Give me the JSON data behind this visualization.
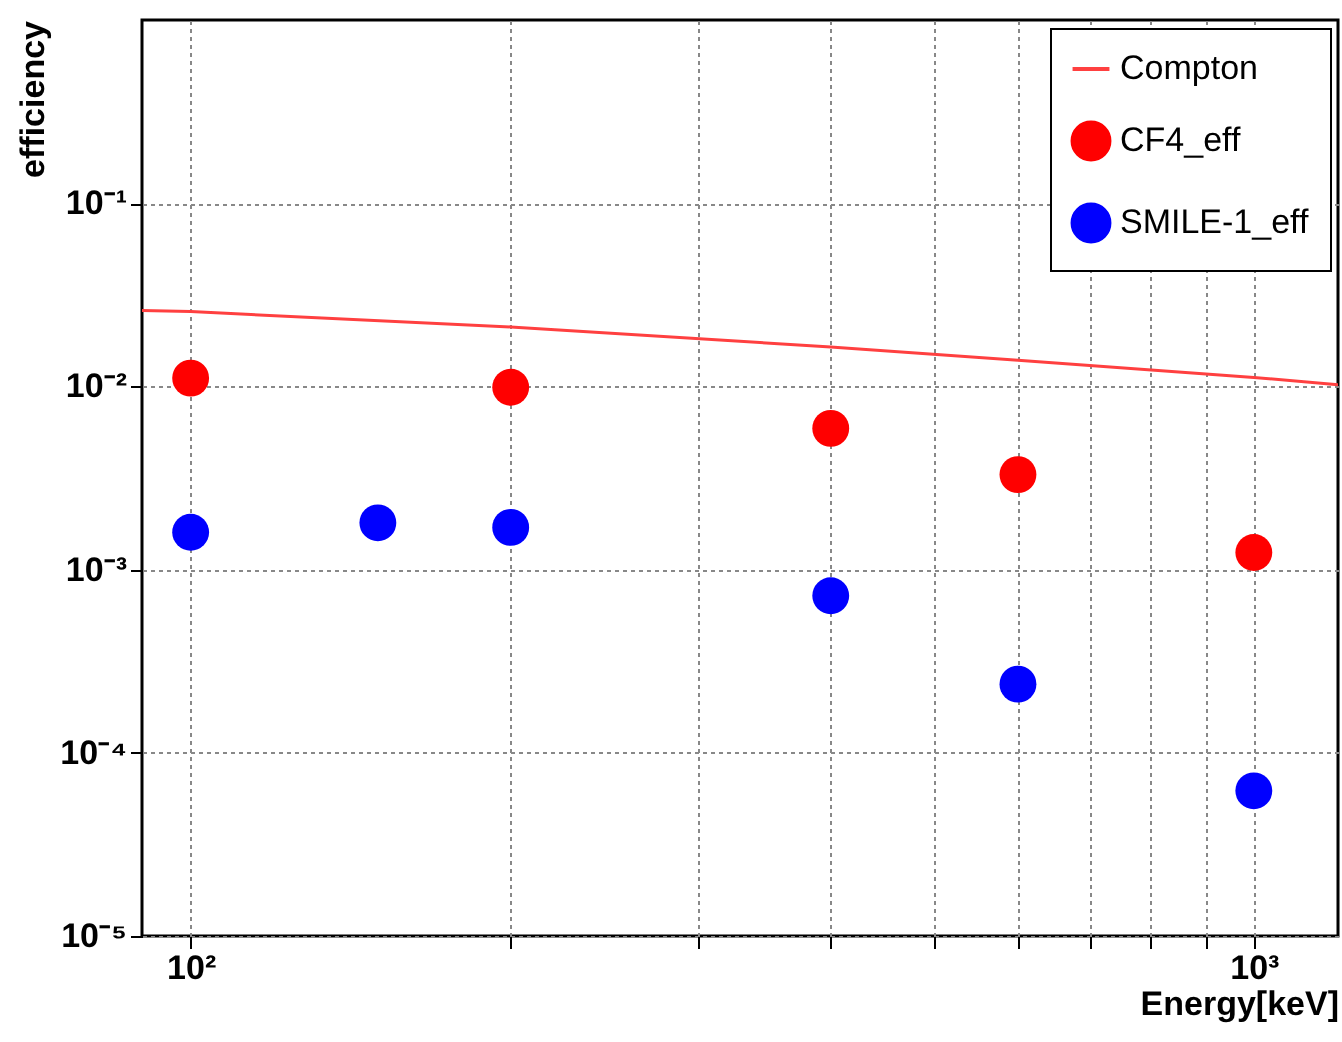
{
  "chart_data": {
    "type": "scatter",
    "xlabel": "Energy[keV]",
    "ylabel": "efficiency",
    "log": "xy",
    "grid": true,
    "legend": "top right",
    "marker": "circle",
    "xlim": [
      90,
      1200
    ],
    "ylim": [
      1e-05,
      1
    ],
    "xticks": [
      {
        "value": 100,
        "label": "10²"
      },
      {
        "value": 200,
        "label": null
      },
      {
        "value": 300,
        "label": null
      },
      {
        "value": 400,
        "label": null
      },
      {
        "value": 500,
        "label": null
      },
      {
        "value": 600,
        "label": null
      },
      {
        "value": 700,
        "label": null
      },
      {
        "value": 800,
        "label": null
      },
      {
        "value": 900,
        "label": null
      },
      {
        "value": 1000,
        "label": "10³"
      }
    ],
    "yticks": [
      {
        "value": 1e-05,
        "label": "10⁻⁵"
      },
      {
        "value": 0.0001,
        "label": "10⁻⁴"
      },
      {
        "value": 0.001,
        "label": "10⁻³"
      },
      {
        "value": 0.01,
        "label": "10⁻²"
      },
      {
        "value": 0.1,
        "label": "10⁻¹"
      }
    ],
    "series": [
      {
        "name": "Compton",
        "type": "line",
        "marker": "none",
        "color": "#ff4040",
        "x": [
          90,
          100,
          200,
          400,
          600,
          1000,
          1200
        ],
        "values": [
          0.026,
          0.0256,
          0.0211,
          0.0164,
          0.0139,
          0.0112,
          0.0102
        ]
      },
      {
        "name": "CF4_eff",
        "color": "#ff0000",
        "x": [
          100,
          200,
          400,
          600,
          1000
        ],
        "values": [
          0.0111,
          0.0099,
          0.0059,
          0.0033,
          0.00124
        ]
      },
      {
        "name": "SMILE-1_eff",
        "color": "#0000ff",
        "x": [
          100,
          150,
          200,
          400,
          600,
          1000
        ],
        "values": [
          0.0016,
          0.0018,
          0.0017,
          0.00072,
          0.000237,
          6.2e-05
        ]
      }
    ]
  }
}
